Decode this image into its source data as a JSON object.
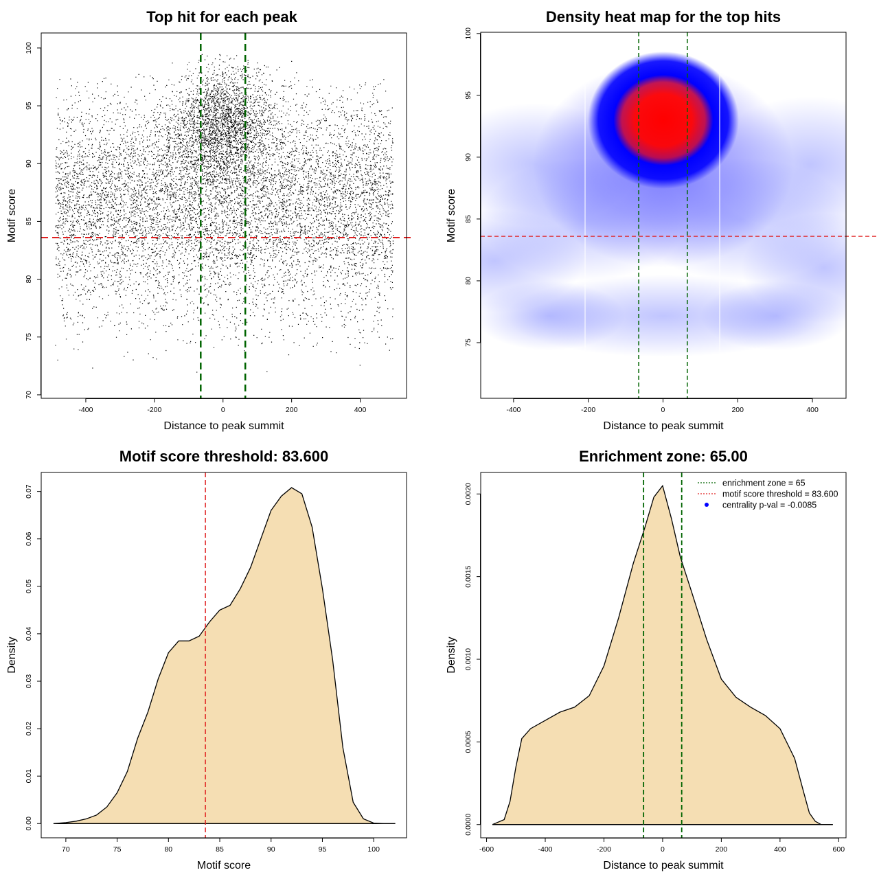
{
  "chart_data": [
    {
      "id": "scatter",
      "type": "scatter",
      "title": "Top hit for each peak",
      "xlabel": "Distance to peak summit",
      "ylabel": "Motif score",
      "xlim": [
        -530,
        535
      ],
      "ylim": [
        69.7,
        101.3
      ],
      "xticks": [
        -400,
        -200,
        0,
        200,
        400
      ],
      "yticks": [
        70,
        75,
        80,
        85,
        90,
        95,
        100
      ],
      "point_count": 11000,
      "point_color": "#000000",
      "point_distribution": {
        "background": {
          "x_range": [
            -490,
            495
          ],
          "y_range": [
            70.5,
            99.5
          ]
        },
        "central_cluster": {
          "x_center": 0,
          "x_sd": 75,
          "y_center": 93.5,
          "y_sd": 2.5
        }
      },
      "hlines": [
        {
          "y": 83.6,
          "color": "#e02020",
          "style": "dashed"
        }
      ],
      "vlines": [
        {
          "x": -65,
          "color": "#006400",
          "style": "dashed"
        },
        {
          "x": 65,
          "color": "#006400",
          "style": "dashed"
        }
      ]
    },
    {
      "id": "heatmap",
      "type": "heatmap",
      "title": "Density heat map for the top hits",
      "xlabel": "Distance to peak summit",
      "ylabel": "Motif score",
      "xlim": [
        -488,
        490
      ],
      "ylim": [
        70.5,
        100.1
      ],
      "xticks": [
        -400,
        -200,
        0,
        200,
        400
      ],
      "yticks": [
        75,
        80,
        85,
        90,
        95,
        100
      ],
      "colors": [
        "#ffffff",
        "#0000ff",
        "#ff0000"
      ],
      "hotspot": {
        "x": 0,
        "y": 93.5
      },
      "hlines": [
        {
          "y": 83.6,
          "color": "#e02020",
          "style": "dashed"
        }
      ],
      "vlines": [
        {
          "x": -65,
          "color": "#006400",
          "style": "dashed"
        },
        {
          "x": 65,
          "color": "#006400",
          "style": "dashed"
        }
      ]
    },
    {
      "id": "score_density",
      "type": "area",
      "title": "Motif score threshold: 83.600",
      "xlabel": "Motif score",
      "ylabel": "Density",
      "xlim": [
        67.6,
        103.2
      ],
      "ylim": [
        -0.003,
        0.074
      ],
      "xticks": [
        70,
        75,
        80,
        85,
        90,
        95,
        100
      ],
      "yticks": [
        0.0,
        0.01,
        0.02,
        0.03,
        0.04,
        0.05,
        0.06,
        0.07
      ],
      "ytick_labels": [
        "0.00",
        "0.01",
        "0.02",
        "0.03",
        "0.04",
        "0.05",
        "0.06",
        "0.07"
      ],
      "fill": "#f5deb3",
      "x": [
        68.8,
        70,
        71,
        72,
        73,
        74,
        75,
        76,
        77,
        78,
        79,
        80,
        81,
        82,
        83,
        84,
        85,
        86,
        87,
        88,
        89,
        90,
        91,
        92,
        93,
        94,
        95,
        96,
        97,
        98,
        99,
        100,
        101,
        102.1
      ],
      "y": [
        0.0,
        0.0002,
        0.0005,
        0.001,
        0.0018,
        0.0035,
        0.0065,
        0.011,
        0.018,
        0.0235,
        0.0305,
        0.036,
        0.0385,
        0.0385,
        0.0395,
        0.0425,
        0.045,
        0.046,
        0.0495,
        0.054,
        0.06,
        0.066,
        0.069,
        0.0708,
        0.0695,
        0.0625,
        0.0495,
        0.0345,
        0.016,
        0.0045,
        0.001,
        0.0001,
        0.0,
        0.0
      ],
      "vlines": [
        {
          "x": 83.6,
          "color": "#e02020",
          "style": "dashed"
        }
      ]
    },
    {
      "id": "distance_density",
      "type": "area",
      "title": "Enrichment zone: 65.00",
      "xlabel": "Distance to peak summit",
      "ylabel": "Density",
      "xlim": [
        -620,
        625
      ],
      "ylim": [
        -8e-05,
        0.00213
      ],
      "xticks": [
        -600,
        -400,
        -200,
        0,
        200,
        400,
        600
      ],
      "yticks": [
        0.0,
        0.0005,
        0.001,
        0.0015,
        0.002
      ],
      "ytick_labels": [
        "0.0000",
        "0.0005",
        "0.0010",
        "0.0015",
        "0.0020"
      ],
      "fill": "#f5deb3",
      "x": [
        -580,
        -540,
        -520,
        -500,
        -480,
        -450,
        -400,
        -350,
        -300,
        -250,
        -200,
        -150,
        -100,
        -60,
        -30,
        0,
        30,
        60,
        100,
        150,
        200,
        250,
        300,
        350,
        400,
        450,
        480,
        500,
        520,
        540,
        580
      ],
      "y": [
        0.0,
        3e-05,
        0.00014,
        0.00035,
        0.00052,
        0.00058,
        0.00063,
        0.00068,
        0.00071,
        0.00078,
        0.00096,
        0.00125,
        0.00158,
        0.0018,
        0.00198,
        0.00205,
        0.00185,
        0.00162,
        0.0014,
        0.00112,
        0.00088,
        0.00077,
        0.00071,
        0.00066,
        0.00058,
        0.0004,
        0.0002,
        7e-05,
        2e-05,
        0.0,
        0.0
      ],
      "vlines": [
        {
          "x": -65,
          "color": "#006400",
          "style": "dashed"
        },
        {
          "x": 65,
          "color": "#006400",
          "style": "dashed"
        }
      ],
      "legend": {
        "position": "top-right",
        "entries": [
          {
            "label": "enrichment zone = 65",
            "color": "#006400",
            "marker": "dotted-line"
          },
          {
            "label": "motif score threshold = 83.600",
            "color": "#e02020",
            "marker": "dotted-line"
          },
          {
            "label": "centrality p-val = -0.0085",
            "color": "#0000ff",
            "marker": "point"
          }
        ]
      }
    }
  ]
}
